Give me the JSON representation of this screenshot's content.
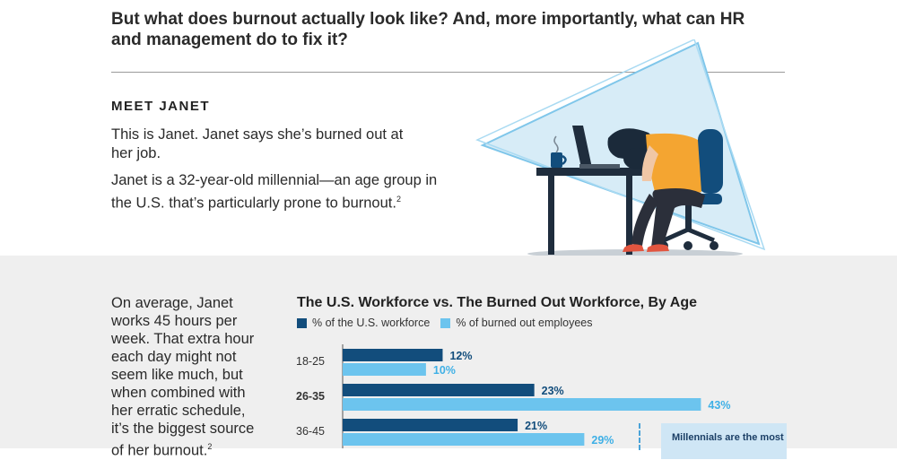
{
  "intro": {
    "text": "But what does burnout actually look like? And, more importantly, what can HR and management do to fix it?"
  },
  "meet": {
    "heading": "MEET JANET",
    "p1": "This is Janet. Janet says she’s burned out at her job.",
    "p2": "Janet is a 32-year-old millennial—an age group in the U.S. that’s particularly prone to burnout.",
    "p2_note": "2"
  },
  "side": {
    "text": "On average, Janet works 45 hours per week. That extra hour each day might not seem like much, but when combined with her erratic schedule, it’s the biggest source of her burnout.",
    "note": "2"
  },
  "callout": {
    "text": "Millennials are the most"
  },
  "colors": {
    "dark_blue": "#124d7c",
    "light_blue": "#6cc4ee",
    "gray_bg": "#efefef"
  },
  "chart_data": {
    "type": "bar",
    "title": "The U.S. Workforce vs. The Burned Out Workforce, By Age",
    "orientation": "horizontal",
    "categories": [
      "18-25",
      "26-35",
      "36-45"
    ],
    "highlight_category": "26-35",
    "series": [
      {
        "name": "% of the U.S. workforce",
        "values": [
          12,
          23,
          21
        ],
        "labels": [
          "12%",
          "23%",
          "21%"
        ]
      },
      {
        "name": "% of burned out employees",
        "values": [
          10,
          43,
          29
        ],
        "labels": [
          "10%",
          "43%",
          "29%"
        ]
      }
    ],
    "xlim": [
      0,
      45
    ],
    "grid": false,
    "legend_position": "top-left"
  }
}
